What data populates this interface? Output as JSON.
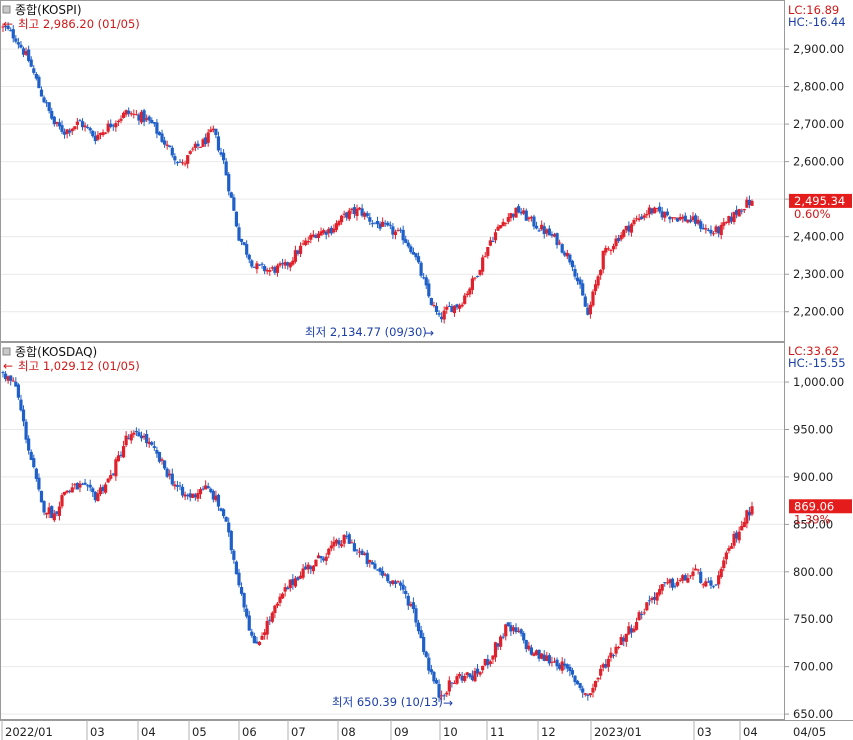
{
  "colors": {
    "up": "#e0202a",
    "down": "#1f5fc8",
    "frame": "#9a9a9a",
    "grid": "#e9e9e9",
    "label_red": "#d01818",
    "label_blue": "#1c3fa8",
    "badge_red": "#e41c1c"
  },
  "chart_data": [
    {
      "type": "candlestick",
      "title": "종합(KOSPI)",
      "lc_text": "LC:16.89",
      "hc_text": "HC:-16.44",
      "high_text": "최고 2,986.20 (01/05)",
      "low_text": "최저 2,134.77 (09/30)",
      "last_value_text": "2,495.34",
      "last_change_text": "0.60%",
      "yticks": [
        "2,900.00",
        "2,800.00",
        "2,700.00",
        "2,600.00",
        "2,500.00",
        "2,400.00",
        "2,300.00",
        "2,200.00"
      ],
      "ylim": [
        2130,
        3020
      ],
      "high": 2986.2,
      "low": 2134.77,
      "last": 2495.34,
      "anchors": [
        [
          0,
          2960
        ],
        [
          5,
          2930
        ],
        [
          10,
          2870
        ],
        [
          15,
          2780
        ],
        [
          20,
          2700
        ],
        [
          24,
          2680
        ],
        [
          30,
          2705
        ],
        [
          36,
          2665
        ],
        [
          42,
          2700
        ],
        [
          48,
          2730
        ],
        [
          54,
          2720
        ],
        [
          58,
          2700
        ],
        [
          64,
          2640
        ],
        [
          70,
          2590
        ],
        [
          74,
          2630
        ],
        [
          78,
          2650
        ],
        [
          82,
          2680
        ],
        [
          86,
          2600
        ],
        [
          92,
          2400
        ],
        [
          98,
          2320
        ],
        [
          104,
          2310
        ],
        [
          110,
          2320
        ],
        [
          116,
          2370
        ],
        [
          122,
          2410
        ],
        [
          128,
          2420
        ],
        [
          134,
          2460
        ],
        [
          139,
          2470
        ],
        [
          144,
          2440
        ],
        [
          150,
          2420
        ],
        [
          156,
          2400
        ],
        [
          160,
          2360
        ],
        [
          166,
          2240
        ],
        [
          170,
          2180
        ],
        [
          174,
          2210
        ],
        [
          178,
          2220
        ],
        [
          184,
          2290
        ],
        [
          190,
          2390
        ],
        [
          196,
          2450
        ],
        [
          201,
          2470
        ],
        [
          206,
          2440
        ],
        [
          210,
          2420
        ],
        [
          216,
          2390
        ],
        [
          222,
          2330
        ],
        [
          228,
          2190
        ],
        [
          234,
          2350
        ],
        [
          240,
          2400
        ],
        [
          246,
          2440
        ],
        [
          252,
          2470
        ],
        [
          258,
          2460
        ],
        [
          264,
          2450
        ],
        [
          270,
          2440
        ],
        [
          276,
          2410
        ],
        [
          280,
          2420
        ],
        [
          284,
          2450
        ],
        [
          288,
          2480
        ],
        [
          292,
          2495
        ]
      ]
    },
    {
      "type": "candlestick",
      "title": "종합(KOSDAQ)",
      "lc_text": "LC:33.62",
      "hc_text": "HC:-15.55",
      "high_text": "최고 1,029.12 (01/05)",
      "low_text": "최저 650.39 (10/13)",
      "last_value_text": "869.06",
      "last_change_text": "1.39%",
      "yticks": [
        "1,000.00",
        "950.00",
        "900.00",
        "850.00",
        "800.00",
        "750.00",
        "700.00",
        "650.00"
      ],
      "ylim": [
        648,
        1038
      ],
      "high": 1029.12,
      "low": 650.39,
      "last": 869.06,
      "anchors": [
        [
          0,
          1010
        ],
        [
          5,
          995
        ],
        [
          10,
          930
        ],
        [
          15,
          870
        ],
        [
          20,
          860
        ],
        [
          24,
          885
        ],
        [
          30,
          890
        ],
        [
          36,
          880
        ],
        [
          42,
          900
        ],
        [
          48,
          940
        ],
        [
          54,
          945
        ],
        [
          58,
          930
        ],
        [
          64,
          905
        ],
        [
          70,
          880
        ],
        [
          74,
          880
        ],
        [
          78,
          890
        ],
        [
          82,
          880
        ],
        [
          86,
          860
        ],
        [
          92,
          790
        ],
        [
          98,
          720
        ],
        [
          104,
          750
        ],
        [
          110,
          780
        ],
        [
          116,
          800
        ],
        [
          122,
          810
        ],
        [
          128,
          825
        ],
        [
          134,
          835
        ],
        [
          139,
          820
        ],
        [
          144,
          805
        ],
        [
          150,
          795
        ],
        [
          156,
          780
        ],
        [
          160,
          760
        ],
        [
          166,
          700
        ],
        [
          170,
          670
        ],
        [
          174,
          680
        ],
        [
          178,
          690
        ],
        [
          184,
          690
        ],
        [
          190,
          710
        ],
        [
          196,
          740
        ],
        [
          201,
          735
        ],
        [
          206,
          715
        ],
        [
          210,
          710
        ],
        [
          216,
          705
        ],
        [
          222,
          690
        ],
        [
          228,
          668
        ],
        [
          234,
          700
        ],
        [
          240,
          725
        ],
        [
          246,
          745
        ],
        [
          252,
          770
        ],
        [
          258,
          785
        ],
        [
          264,
          790
        ],
        [
          270,
          800
        ],
        [
          276,
          780
        ],
        [
          280,
          800
        ],
        [
          284,
          830
        ],
        [
          288,
          850
        ],
        [
          292,
          869
        ]
      ]
    }
  ],
  "x_axis": {
    "ticks": [
      "2022/01",
      "03",
      "04",
      "05",
      "06",
      "07",
      "08",
      "09",
      "10",
      "11",
      "12",
      "2023/01",
      "03",
      "04",
      "04/05"
    ]
  }
}
